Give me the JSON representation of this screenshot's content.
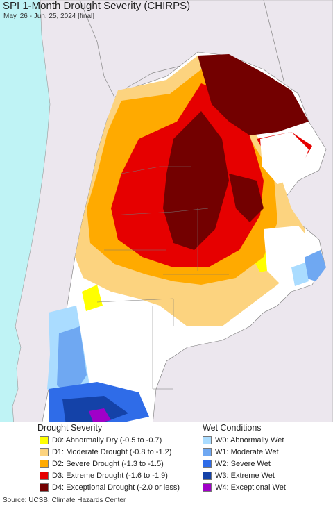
{
  "header": {
    "title": "SPI 1-Month Drought Severity (CHIRPS)",
    "subtitle": "May. 26 - Jun. 25, 2024 [final]"
  },
  "legend": {
    "drought": {
      "heading": "Drought Severity",
      "items": [
        {
          "label": "D0: Abnormally Dry (-0.5 to -0.7)",
          "color": "#ffff00"
        },
        {
          "label": "D1: Moderate Drought (-0.8 to -1.2)",
          "color": "#fcd37f"
        },
        {
          "label": "D2: Severe Drought (-1.3 to -1.5)",
          "color": "#ffaa00"
        },
        {
          "label": "D3: Extreme Drought (-1.6 to -1.9)",
          "color": "#e60000"
        },
        {
          "label": "D4: Exceptional Drought (-2.0 or less)",
          "color": "#730000"
        }
      ]
    },
    "wet": {
      "heading": "Wet Conditions",
      "items": [
        {
          "label": "W0: Abnormally Wet",
          "color": "#aadcff"
        },
        {
          "label": "W1: Moderate Wet",
          "color": "#6fa8f2"
        },
        {
          "label": "W2: Severe Wet",
          "color": "#2f6ce8"
        },
        {
          "label": "W3: Extreme Wet",
          "color": "#1442a8"
        },
        {
          "label": "W4: Exceptional Wet",
          "color": "#a000c8"
        }
      ]
    }
  },
  "colors": {
    "ocean": "#bff3f5",
    "land_outside": "#ece7ee",
    "no_drought": "#ffffff"
  },
  "footer": {
    "source": "Source: UCSB, Climate Hazards Center"
  }
}
